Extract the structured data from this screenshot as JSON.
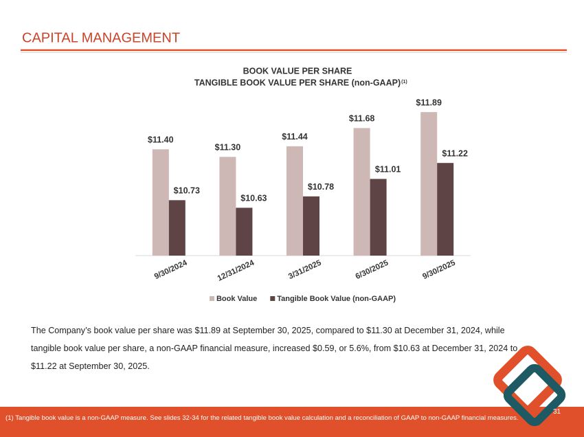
{
  "header": {
    "title": "CAPITAL MANAGEMENT"
  },
  "chart_data": {
    "type": "bar",
    "title": "BOOK VALUE PER SHARE",
    "subtitle": "TANGIBLE BOOK VALUE PER SHARE (non-GAAP)",
    "subtitle_note": "(1)",
    "categories": [
      "9/30/2024",
      "12/31/2024",
      "3/31/2025",
      "6/30/2025",
      "9/30/2025"
    ],
    "series": [
      {
        "name": "Book Value",
        "color": "#cdb8b6",
        "values": [
          11.4,
          11.3,
          11.44,
          11.68,
          11.89
        ],
        "value_labels": [
          "$11.40",
          "$11.30",
          "$11.44",
          "$11.68",
          "$11.89"
        ]
      },
      {
        "name": "Tangible Book Value (non-GAAP)",
        "color": "#5f4446",
        "values": [
          10.73,
          10.63,
          10.78,
          11.01,
          11.22
        ],
        "value_labels": [
          "$10.73",
          "$10.63",
          "$10.78",
          "$11.01",
          "$11.22"
        ]
      }
    ],
    "ylim": [
      10,
      12
    ],
    "legend": "bottom"
  },
  "body": {
    "text": "The Company’s book value per share was $11.89 at September 30, 2025, compared to $11.30 at December 31, 2024, while tangible book value per share, a non-GAAP financial measure, increased $0.59, or 5.6%, from $10.63 at December 31, 2024 to $11.22 at September 30, 2025."
  },
  "footer": {
    "footnote": "(1) Tangible book value is a non-GAAP measure.  See slides 32-34 for the related tangible book value calculation and a reconciliation of GAAP to non-GAAP financial measures.",
    "page_number": "31"
  }
}
